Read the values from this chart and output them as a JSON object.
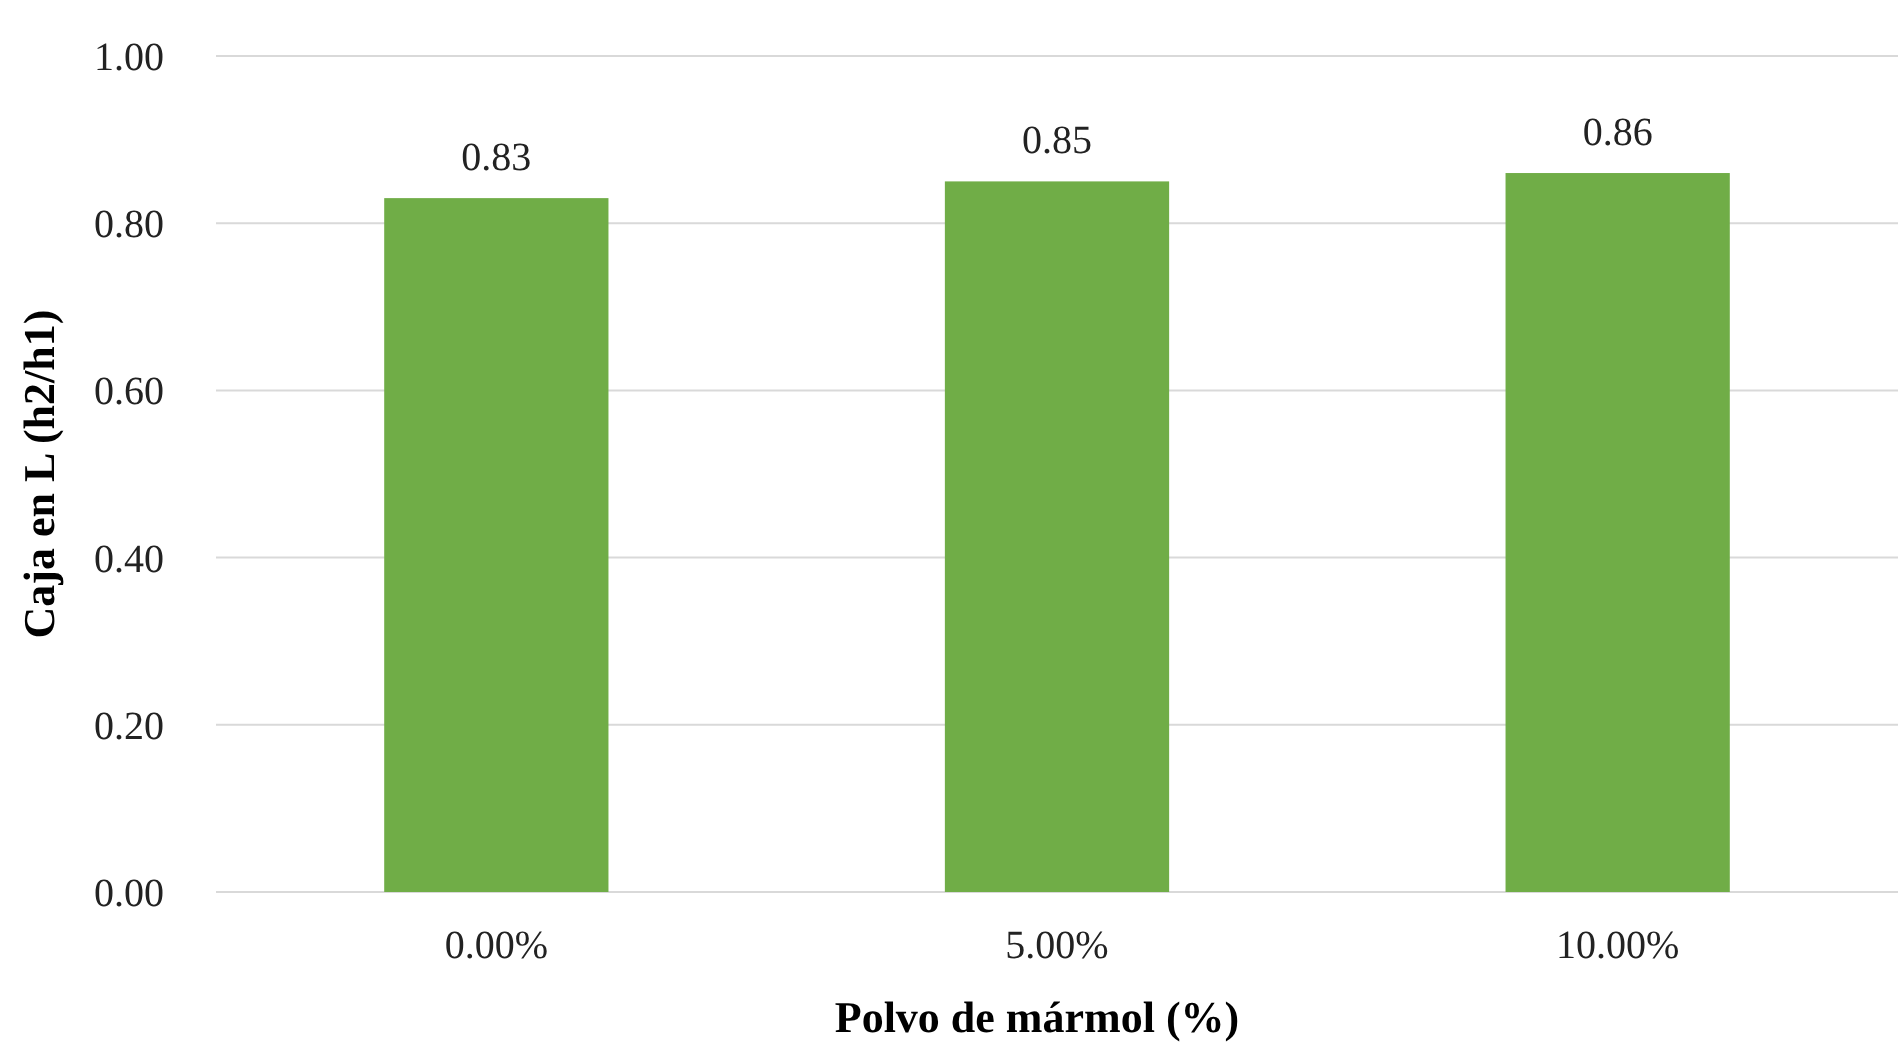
{
  "chart_data": {
    "type": "bar",
    "xlabel": "Polvo de mármol (%)",
    "ylabel": "Caja en L (h2/h1)",
    "categories": [
      "0.00%",
      "5.00%",
      "10.00%"
    ],
    "values": [
      0.83,
      0.85,
      0.86
    ],
    "color": "#70ad47",
    "ylim": [
      0,
      1
    ],
    "yticks": [
      {
        "value": 0,
        "label": "0.00"
      },
      {
        "value": 0.2,
        "label": "0.20"
      },
      {
        "value": 0.4,
        "label": "0.40"
      },
      {
        "value": 0.6,
        "label": "0.60"
      },
      {
        "value": 0.8,
        "label": "0.80"
      },
      {
        "value": 1,
        "label": "1.00"
      }
    ],
    "grid": "y",
    "data_labels": true
  }
}
